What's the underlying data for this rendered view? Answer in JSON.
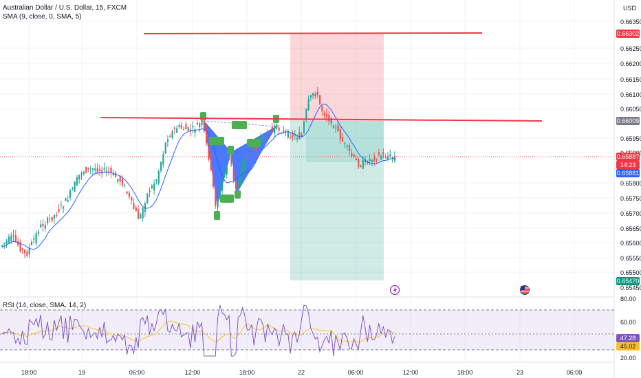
{
  "chart": {
    "title": "Australian Dollar / U.S. Dollar, 15, FXCM",
    "indicator_sma": "SMA (9, close, 0, SMA, 5)",
    "indicator_rsi": "RSI (14, close, SMA, 14, 2)",
    "currency": "USD"
  },
  "price_axis": {
    "ticks": [
      "0.66350",
      "0.66250",
      "0.66200",
      "0.66150",
      "0.66100",
      "0.66050",
      "0.65950",
      "0.65900",
      "0.65800",
      "0.65750",
      "0.65700",
      "0.65650",
      "0.65600",
      "0.65550",
      "0.65500",
      "0.65450"
    ],
    "tag_top": "0.66302",
    "tag_resistance": "0.66009",
    "tag_current": "0.65887",
    "tag_countdown": "14:23",
    "tag_sma": "0.65881",
    "tag_bottom": "0.65470"
  },
  "rsi_axis": {
    "ticks": [
      "80.00",
      "60.00",
      "20.00"
    ],
    "tag_rsi": "47.28",
    "tag_rsi_ma": "45.02"
  },
  "time_axis": {
    "labels": [
      "18:00",
      "19",
      "06:00",
      "12:00",
      "18:00",
      "22",
      "06:00",
      "12:00",
      "18:00",
      "23",
      "06:00"
    ]
  },
  "colors": {
    "up": "#26a69a",
    "down": "#ef5350",
    "sma": "#2962ff",
    "rsi": "#7e57c2",
    "rsi_ma": "#fbc02d",
    "harmonic": "#2962ff",
    "pattern_label": "#4caf50",
    "level_line": "#f23645",
    "stop_zone": "rgba(242,54,69,0.2)",
    "target_zone": "rgba(8,153,129,0.2)"
  },
  "icons": {
    "flash": "lightning-icon",
    "flag": "us-flag-icon"
  }
}
